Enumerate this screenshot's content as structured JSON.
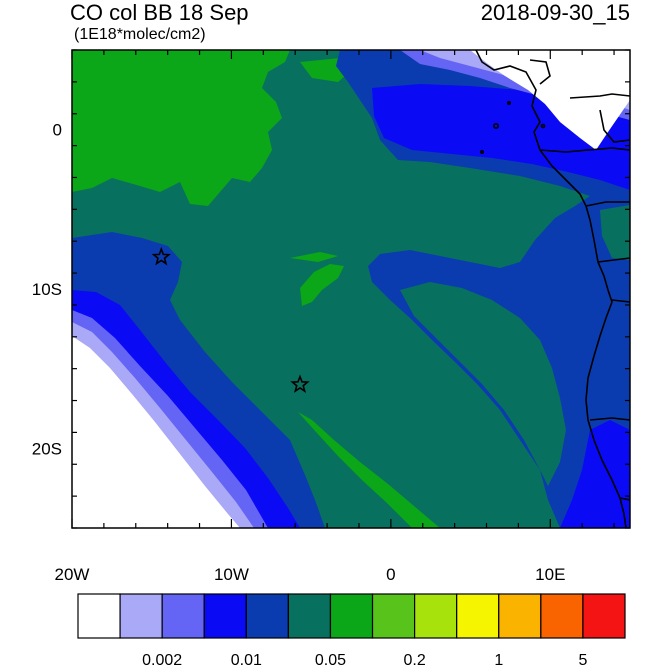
{
  "header": {
    "title": "CO col BB 18 Sep",
    "timestamp": "2018-09-30_15",
    "units": "(1E18*molec/cm2)"
  },
  "chart_data": {
    "type": "heatmap",
    "title": "CO col BB 18 Sep",
    "subtitle": "(1E18*molec/cm2)",
    "lon_range": [
      -20,
      15
    ],
    "lat_range": [
      -25,
      5
    ],
    "x_ticks": [
      {
        "value": -20,
        "label": "20W"
      },
      {
        "value": -10,
        "label": "10W"
      },
      {
        "value": 0,
        "label": "0"
      },
      {
        "value": 10,
        "label": "10E"
      }
    ],
    "y_ticks": [
      {
        "value": 0,
        "label": "0"
      },
      {
        "value": -10,
        "label": "10S"
      },
      {
        "value": -20,
        "label": "20S"
      }
    ],
    "markers": [
      {
        "name": "star",
        "lon": -14.4,
        "lat": -8.0
      },
      {
        "name": "star",
        "lon": -5.7,
        "lat": -16.0
      }
    ],
    "colorbar": {
      "colors": [
        "#ffffff",
        "#a9a9f7",
        "#6464f5",
        "#0a0af5",
        "#0a3caf",
        "#08705e",
        "#0ca619",
        "#58c41b",
        "#a8e20c",
        "#f5f500",
        "#fab400",
        "#fa6400",
        "#f51414"
      ],
      "labels": [
        {
          "boundary": 2,
          "text": "0.002"
        },
        {
          "boundary": 4,
          "text": "0.01"
        },
        {
          "boundary": 6,
          "text": "0.05"
        },
        {
          "boundary": 8,
          "text": "0.2"
        },
        {
          "boundary": 10,
          "text": "1"
        },
        {
          "boundary": 12,
          "text": "5"
        }
      ]
    }
  }
}
